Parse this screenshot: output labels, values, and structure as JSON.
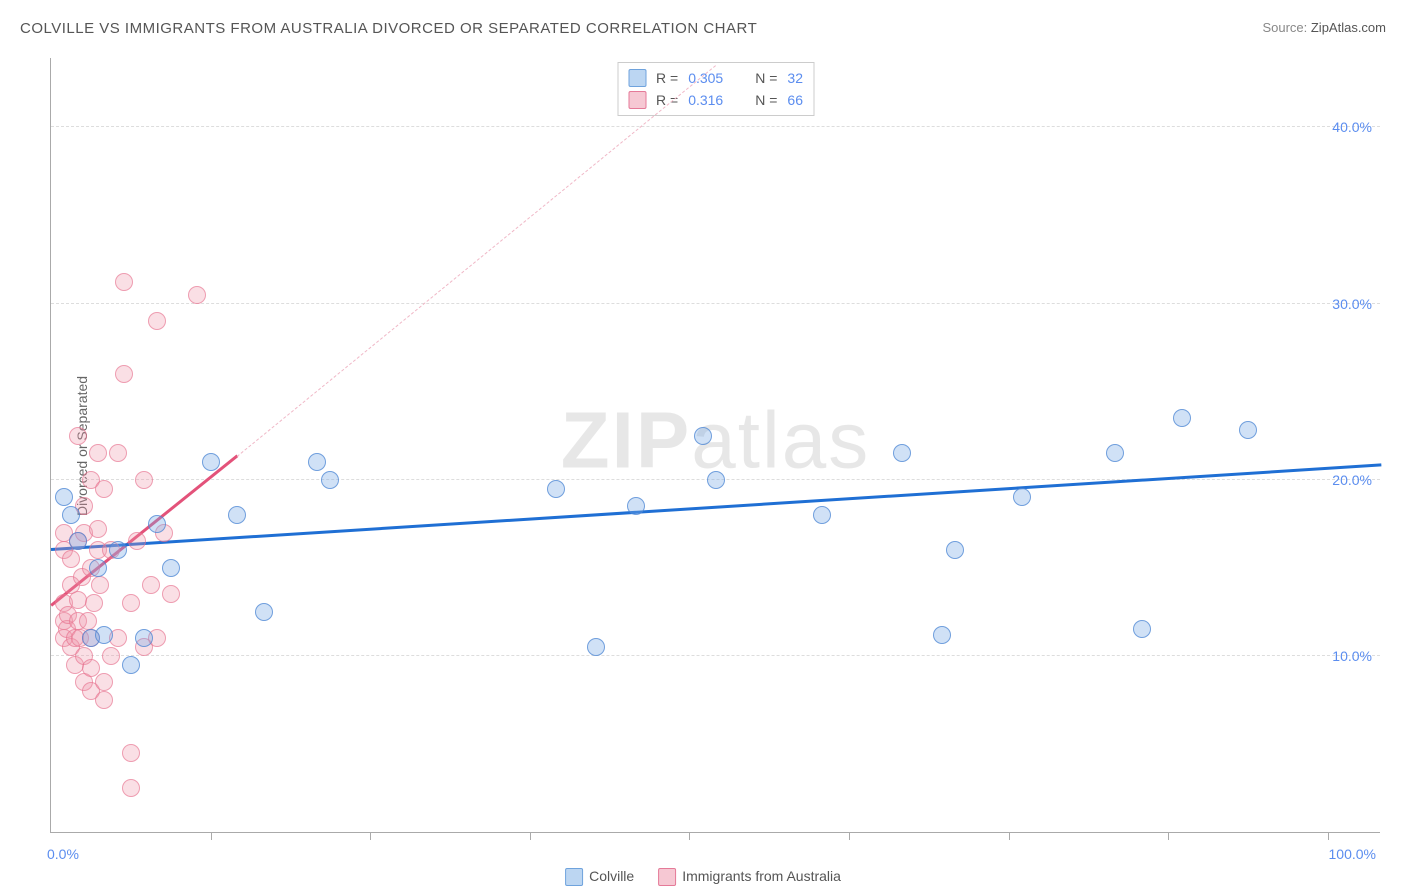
{
  "title": "COLVILLE VS IMMIGRANTS FROM AUSTRALIA DIVORCED OR SEPARATED CORRELATION CHART",
  "source_label": "Source: ",
  "source_value": "ZipAtlas.com",
  "ylabel": "Divorced or Separated",
  "watermark_bold": "ZIP",
  "watermark_rest": "atlas",
  "chart": {
    "type": "scatter",
    "xlim": [
      0,
      100
    ],
    "ylim": [
      0,
      44
    ],
    "y_ticks": [
      10,
      20,
      30,
      40
    ],
    "y_tick_labels": [
      "10.0%",
      "20.0%",
      "30.0%",
      "40.0%"
    ],
    "x_ticks_minor": [
      12,
      24,
      36,
      48,
      60,
      72,
      84,
      96
    ],
    "x_tick_labels": [
      {
        "x": 0,
        "label": "0.0%",
        "align": "left"
      },
      {
        "x": 100,
        "label": "100.0%",
        "align": "right"
      }
    ],
    "grid_color": "#dddddd",
    "background_color": "#ffffff",
    "series": [
      {
        "name": "Colville",
        "swatch_fill": "#bcd6f2",
        "swatch_border": "#6fa3dd",
        "R": "0.305",
        "N": "32",
        "trend": {
          "x1": 0,
          "y1": 16.0,
          "x2": 100,
          "y2": 20.8,
          "color": "#1f6fd4"
        },
        "points": [
          {
            "x": 1,
            "y": 19
          },
          {
            "x": 1.5,
            "y": 18
          },
          {
            "x": 2,
            "y": 16.5
          },
          {
            "x": 3,
            "y": 11
          },
          {
            "x": 3.5,
            "y": 15
          },
          {
            "x": 4,
            "y": 11.2
          },
          {
            "x": 5,
            "y": 16
          },
          {
            "x": 6,
            "y": 9.5
          },
          {
            "x": 7,
            "y": 11
          },
          {
            "x": 8,
            "y": 17.5
          },
          {
            "x": 9,
            "y": 15
          },
          {
            "x": 12,
            "y": 21
          },
          {
            "x": 14,
            "y": 18
          },
          {
            "x": 16,
            "y": 12.5
          },
          {
            "x": 20,
            "y": 21
          },
          {
            "x": 21,
            "y": 20
          },
          {
            "x": 38,
            "y": 19.5
          },
          {
            "x": 41,
            "y": 10.5
          },
          {
            "x": 44,
            "y": 18.5
          },
          {
            "x": 49,
            "y": 22.5
          },
          {
            "x": 50,
            "y": 20
          },
          {
            "x": 58,
            "y": 18
          },
          {
            "x": 64,
            "y": 21.5
          },
          {
            "x": 67,
            "y": 11.2
          },
          {
            "x": 68,
            "y": 16
          },
          {
            "x": 73,
            "y": 19
          },
          {
            "x": 80,
            "y": 21.5
          },
          {
            "x": 82,
            "y": 11.5
          },
          {
            "x": 85,
            "y": 23.5
          },
          {
            "x": 90,
            "y": 22.8
          }
        ]
      },
      {
        "name": "Immigrants from Australia",
        "swatch_fill": "#f6c8d3",
        "swatch_border": "#e57a98",
        "R": "0.316",
        "N": "66",
        "trend_solid": {
          "x1": 0,
          "y1": 12.8,
          "x2": 14,
          "y2": 21.3,
          "color": "#e3527a"
        },
        "trend_dash": {
          "x1": 14,
          "y1": 21.3,
          "x2": 50,
          "y2": 43.5,
          "color": "#f0b8c7"
        },
        "points": [
          {
            "x": 1,
            "y": 11
          },
          {
            "x": 1,
            "y": 12
          },
          {
            "x": 1,
            "y": 13
          },
          {
            "x": 1,
            "y": 16
          },
          {
            "x": 1,
            "y": 17
          },
          {
            "x": 1.2,
            "y": 11.5
          },
          {
            "x": 1.3,
            "y": 12.3
          },
          {
            "x": 1.5,
            "y": 10.5
          },
          {
            "x": 1.5,
            "y": 14
          },
          {
            "x": 1.5,
            "y": 15.5
          },
          {
            "x": 1.8,
            "y": 9.5
          },
          {
            "x": 1.8,
            "y": 11
          },
          {
            "x": 2,
            "y": 12
          },
          {
            "x": 2,
            "y": 13.2
          },
          {
            "x": 2,
            "y": 16.5
          },
          {
            "x": 2,
            "y": 22.5
          },
          {
            "x": 2.2,
            "y": 11
          },
          {
            "x": 2.3,
            "y": 14.5
          },
          {
            "x": 2.5,
            "y": 8.5
          },
          {
            "x": 2.5,
            "y": 10
          },
          {
            "x": 2.5,
            "y": 17
          },
          {
            "x": 2.5,
            "y": 18.5
          },
          {
            "x": 2.8,
            "y": 12
          },
          {
            "x": 3,
            "y": 8
          },
          {
            "x": 3,
            "y": 9.3
          },
          {
            "x": 3,
            "y": 11
          },
          {
            "x": 3,
            "y": 15
          },
          {
            "x": 3,
            "y": 20
          },
          {
            "x": 3.2,
            "y": 13
          },
          {
            "x": 3.5,
            "y": 21.5
          },
          {
            "x": 3.5,
            "y": 16
          },
          {
            "x": 3.5,
            "y": 17.2
          },
          {
            "x": 3.7,
            "y": 14
          },
          {
            "x": 4,
            "y": 7.5
          },
          {
            "x": 4,
            "y": 8.5
          },
          {
            "x": 4,
            "y": 19.5
          },
          {
            "x": 4.5,
            "y": 10
          },
          {
            "x": 4.5,
            "y": 16
          },
          {
            "x": 5,
            "y": 11
          },
          {
            "x": 5,
            "y": 21.5
          },
          {
            "x": 5.5,
            "y": 26
          },
          {
            "x": 5.5,
            "y": 31.2
          },
          {
            "x": 6,
            "y": 4.5
          },
          {
            "x": 6,
            "y": 13
          },
          {
            "x": 6,
            "y": 2.5
          },
          {
            "x": 6.5,
            "y": 16.5
          },
          {
            "x": 7,
            "y": 10.5
          },
          {
            "x": 7,
            "y": 20
          },
          {
            "x": 7.5,
            "y": 14
          },
          {
            "x": 8,
            "y": 29
          },
          {
            "x": 8,
            "y": 11
          },
          {
            "x": 8.5,
            "y": 17
          },
          {
            "x": 9,
            "y": 13.5
          },
          {
            "x": 11,
            "y": 30.5
          }
        ]
      }
    ]
  },
  "legend_top": {
    "R_label": "R =",
    "N_label": "N ="
  },
  "legend_bottom_items": [
    {
      "key": "Colville"
    },
    {
      "key": "Immigrants from Australia"
    }
  ]
}
